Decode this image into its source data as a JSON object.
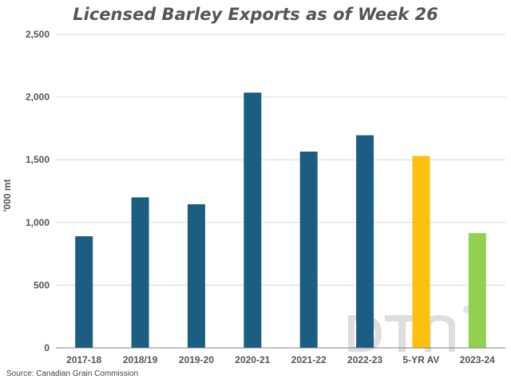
{
  "chart_data": {
    "type": "bar",
    "title": "Licensed Barley Exports as of Week 26",
    "xlabel": "",
    "ylabel": "'000 mt",
    "ylim": [
      0,
      2500
    ],
    "yticks": [
      0,
      500,
      1000,
      1500,
      2000,
      2500
    ],
    "ytick_labels": [
      "0",
      "500",
      "1,000",
      "1,500",
      "2,000",
      "2,500"
    ],
    "grid": true,
    "categories": [
      "2017-18",
      "2018/19",
      "2019-20",
      "2020-21",
      "2021-22",
      "2022-23",
      "5-YR AV",
      "2023-24"
    ],
    "values": [
      890,
      1200,
      1145,
      2035,
      1565,
      1695,
      1530,
      915
    ],
    "bar_colors": [
      "#1b5e82",
      "#1b5e82",
      "#1b5e82",
      "#1b5e82",
      "#1b5e82",
      "#1b5e82",
      "#fdc00f",
      "#92d050"
    ]
  },
  "source": "Source: Canadian Grain Commission",
  "watermark": "DTN"
}
